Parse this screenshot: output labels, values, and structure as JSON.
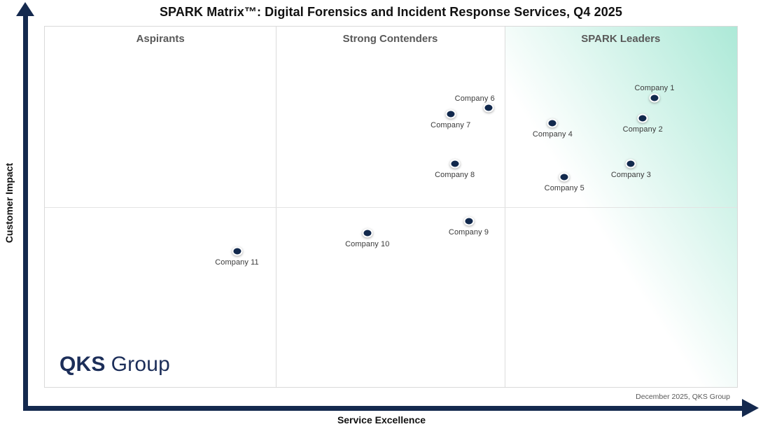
{
  "title": "SPARK Matrix™: Digital Forensics and Incident Response Services, Q4 2025",
  "x_axis_label": "Service Excellence",
  "y_axis_label": "Customer Impact",
  "footnote": "December 2025, QKS Group",
  "logo": {
    "bold": "QKS",
    "light": "Group"
  },
  "colors": {
    "axis_navy": "#14294e",
    "dot_navy": "#12294d",
    "dot_ring": "#ffffff",
    "zone_label_gray": "#595959",
    "leaders_green": "#ace9d7",
    "grid_gray": "#dcdcdc",
    "logo_navy": "#1c2e59",
    "label_gray": "#3a3a3a"
  },
  "chart_data": {
    "type": "scatter",
    "title": "SPARK Matrix™: Digital Forensics and Incident Response Services, Q4 2025",
    "xlabel": "Service Excellence",
    "ylabel": "Customer Impact",
    "xlim": [
      0,
      100
    ],
    "ylim": [
      0,
      100
    ],
    "axis_ticks": "none (relative 0-100 scale, no numeric ticks shown)",
    "grid": "quadrant dividers only",
    "legend": "none",
    "zones": [
      {
        "label": "Aspirants",
        "x_band": [
          0,
          33.4
        ]
      },
      {
        "label": "Strong Contenders",
        "x_band": [
          33.4,
          66.4
        ]
      },
      {
        "label": "SPARK Leaders",
        "x_band": [
          66.4,
          100
        ],
        "highlight": "green gradient from top-right"
      }
    ],
    "horizontal_divider_y": 50,
    "points": [
      {
        "label": "Company 1",
        "x": 87.9,
        "y": 80.2,
        "label_pos": "above"
      },
      {
        "label": "Company 2",
        "x": 86.2,
        "y": 74.6,
        "label_pos": "below"
      },
      {
        "label": "Company 3",
        "x": 84.5,
        "y": 62.0,
        "label_pos": "below"
      },
      {
        "label": "Company 4",
        "x": 73.2,
        "y": 73.4,
        "label_pos": "below"
      },
      {
        "label": "Company 5",
        "x": 74.9,
        "y": 58.5,
        "label_pos": "below"
      },
      {
        "label": "Company 6",
        "x": 64.0,
        "y": 77.5,
        "label_pos": "above-left"
      },
      {
        "label": "Company 7",
        "x": 58.5,
        "y": 75.8,
        "label_pos": "below"
      },
      {
        "label": "Company 8",
        "x": 59.1,
        "y": 62.0,
        "label_pos": "below"
      },
      {
        "label": "Company 9",
        "x": 61.1,
        "y": 46.3,
        "label_pos": "below"
      },
      {
        "label": "Company 10",
        "x": 46.5,
        "y": 43.0,
        "label_pos": "below"
      },
      {
        "label": "Company 11",
        "x": 27.7,
        "y": 38.0,
        "label_pos": "below"
      }
    ]
  }
}
